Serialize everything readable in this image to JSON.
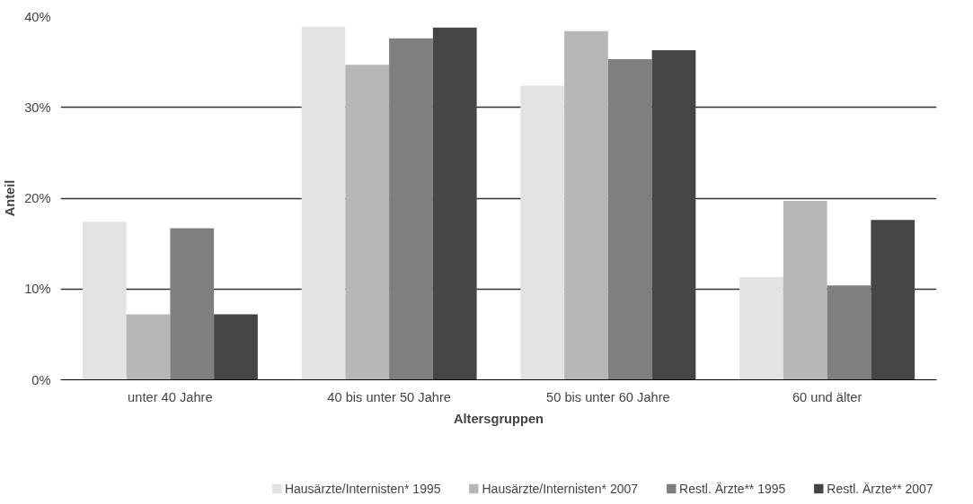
{
  "chart_data": {
    "type": "bar",
    "xlabel": "Altersgruppen",
    "ylabel": "Anteil",
    "categories": [
      "unter 40 Jahre",
      "40 bis unter 50 Jahre",
      "50 bis unter 60 Jahre",
      "60 und älter"
    ],
    "series": [
      {
        "name": "Hausärzte/Internisten* 1995",
        "color": "#e3e3e3",
        "values": [
          17.4,
          38.9,
          32.4,
          11.3
        ]
      },
      {
        "name": "Hausärzte/Internisten* 2007",
        "color": "#b7b7b7",
        "values": [
          7.2,
          34.7,
          38.4,
          19.7
        ]
      },
      {
        "name": "Restl. Ärzte** 1995",
        "color": "#7f7f7f",
        "values": [
          16.7,
          37.6,
          35.3,
          10.4
        ]
      },
      {
        "name": "Restl. Ärzte** 2007",
        "color": "#454545",
        "values": [
          7.2,
          38.8,
          36.3,
          17.6
        ]
      }
    ],
    "ylim": [
      0,
      40
    ],
    "yticks": [
      {
        "value": 0,
        "label": "0%"
      },
      {
        "value": 10,
        "label": "10%"
      },
      {
        "value": 20,
        "label": "20%"
      },
      {
        "value": 30,
        "label": "30%"
      },
      {
        "value": 40,
        "label": "40%"
      }
    ],
    "grid": "y",
    "legend": "bottom"
  }
}
